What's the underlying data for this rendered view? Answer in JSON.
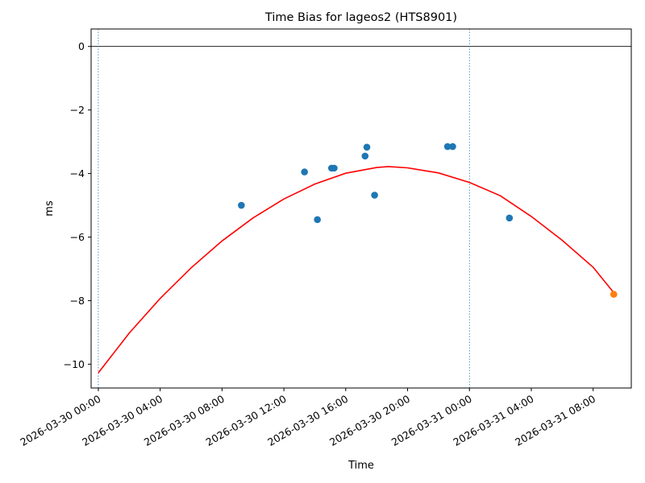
{
  "chart_data": {
    "type": "scatter",
    "title": "Time Bias for lageos2 (HTS8901)",
    "xlabel": "Time",
    "ylabel": "ms",
    "xlim": [
      "2026-03-29 23:32",
      "2026-03-31 10:28"
    ],
    "ylim": [
      -10.75,
      0.55
    ],
    "x_ticks": [
      {
        "t": "2026-03-30 00:00",
        "label": "2026-03-30 00:00"
      },
      {
        "t": "2026-03-30 04:00",
        "label": "2026-03-30 04:00"
      },
      {
        "t": "2026-03-30 08:00",
        "label": "2026-03-30 08:00"
      },
      {
        "t": "2026-03-30 12:00",
        "label": "2026-03-30 12:00"
      },
      {
        "t": "2026-03-30 16:00",
        "label": "2026-03-30 16:00"
      },
      {
        "t": "2026-03-30 20:00",
        "label": "2026-03-30 20:00"
      },
      {
        "t": "2026-03-31 00:00",
        "label": "2026-03-31 00:00"
      },
      {
        "t": "2026-03-31 04:00",
        "label": "2026-03-31 04:00"
      },
      {
        "t": "2026-03-31 08:00",
        "label": "2026-03-31 08:00"
      }
    ],
    "y_ticks": [
      {
        "v": 0,
        "label": "0"
      },
      {
        "v": -2,
        "label": "−2"
      },
      {
        "v": -4,
        "label": "−4"
      },
      {
        "v": -6,
        "label": "−6"
      },
      {
        "v": -8,
        "label": "−8"
      },
      {
        "v": -10,
        "label": "−10"
      }
    ],
    "reference_lines": {
      "horizontal": {
        "y": 0,
        "color": "#000000"
      },
      "vertical": [
        {
          "t": "2026-03-30 00:00",
          "color": "#1f77b4",
          "style": "dotted"
        },
        {
          "t": "2026-03-31 00:00",
          "color": "#1f77b4",
          "style": "dotted"
        }
      ]
    },
    "series": [
      {
        "type": "scatter",
        "color": "#1f77b4",
        "points": [
          {
            "t": "2026-03-30 09:15",
            "y": -5.0
          },
          {
            "t": "2026-03-30 13:20",
            "y": -3.95
          },
          {
            "t": "2026-03-30 14:10",
            "y": -5.45
          },
          {
            "t": "2026-03-30 15:05",
            "y": -3.83
          },
          {
            "t": "2026-03-30 15:15",
            "y": -3.83
          },
          {
            "t": "2026-03-30 17:15",
            "y": -3.45
          },
          {
            "t": "2026-03-30 17:22",
            "y": -3.17
          },
          {
            "t": "2026-03-30 17:52",
            "y": -4.68
          },
          {
            "t": "2026-03-30 22:35",
            "y": -3.15
          },
          {
            "t": "2026-03-30 22:55",
            "y": -3.15
          },
          {
            "t": "2026-03-31 02:35",
            "y": -5.4
          }
        ]
      },
      {
        "type": "scatter",
        "color": "#ff7f0e",
        "points": [
          {
            "t": "2026-03-31 09:20",
            "y": -7.8
          }
        ]
      },
      {
        "type": "line",
        "color": "#ff0000",
        "points": [
          {
            "t": "2026-03-30 00:00",
            "y": -10.27
          },
          {
            "t": "2026-03-30 02:00",
            "y": -9.02
          },
          {
            "t": "2026-03-30 04:00",
            "y": -7.93
          },
          {
            "t": "2026-03-30 06:00",
            "y": -6.97
          },
          {
            "t": "2026-03-30 08:00",
            "y": -6.12
          },
          {
            "t": "2026-03-30 10:00",
            "y": -5.4
          },
          {
            "t": "2026-03-30 12:00",
            "y": -4.8
          },
          {
            "t": "2026-03-30 14:00",
            "y": -4.33
          },
          {
            "t": "2026-03-30 16:00",
            "y": -3.99
          },
          {
            "t": "2026-03-30 18:00",
            "y": -3.81
          },
          {
            "t": "2026-03-30 18:45",
            "y": -3.78
          },
          {
            "t": "2026-03-30 20:00",
            "y": -3.82
          },
          {
            "t": "2026-03-30 22:00",
            "y": -3.98
          },
          {
            "t": "2026-03-31 00:00",
            "y": -4.28
          },
          {
            "t": "2026-03-31 02:00",
            "y": -4.7
          },
          {
            "t": "2026-03-31 04:00",
            "y": -5.35
          },
          {
            "t": "2026-03-31 06:00",
            "y": -6.1
          },
          {
            "t": "2026-03-31 08:00",
            "y": -6.95
          },
          {
            "t": "2026-03-31 09:20",
            "y": -7.75
          }
        ]
      }
    ],
    "grid": false,
    "legend": false
  }
}
